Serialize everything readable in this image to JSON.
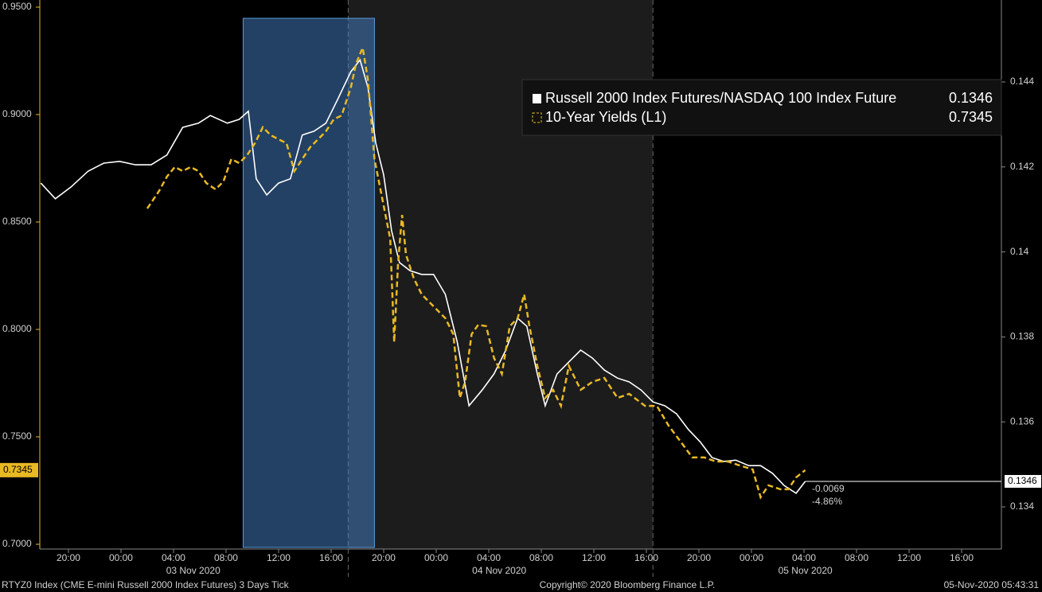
{
  "chart_data": {
    "type": "line",
    "xlim": [
      17.82,
      91.03
    ],
    "xticks": [
      {
        "value": 20,
        "label": "20:00"
      },
      {
        "value": 24,
        "label": "00:00"
      },
      {
        "value": 28,
        "label": "04:00"
      },
      {
        "value": 32,
        "label": "08:00"
      },
      {
        "value": 36,
        "label": "12:00"
      },
      {
        "value": 40,
        "label": "16:00"
      },
      {
        "value": 44,
        "label": "20:00"
      },
      {
        "value": 48,
        "label": "00:00"
      },
      {
        "value": 52,
        "label": "04:00"
      },
      {
        "value": 56,
        "label": "08:00"
      },
      {
        "value": 60,
        "label": "12:00"
      },
      {
        "value": 64,
        "label": "16:00"
      },
      {
        "value": 68,
        "label": "20:00"
      },
      {
        "value": 72,
        "label": "00:00"
      },
      {
        "value": 76,
        "label": "04:00"
      },
      {
        "value": 80,
        "label": "08:00"
      },
      {
        "value": 84,
        "label": "12:00"
      },
      {
        "value": 88,
        "label": "16:00"
      }
    ],
    "date_labels": [
      {
        "value": 29.5,
        "label": "03 Nov 2020"
      },
      {
        "value": 52.8,
        "label": "04 Nov 2020"
      },
      {
        "value": 76.1,
        "label": "05 Nov 2020"
      }
    ],
    "session_shade": [
      41.3,
      64.5
    ],
    "highlight": [
      33.3,
      43.3
    ],
    "ylim": [
      0.7,
      0.95
    ],
    "yticks": [
      {
        "value": 0.7,
        "label": "0.7000"
      },
      {
        "value": 0.75,
        "label": "0.7500"
      },
      {
        "value": 0.8,
        "label": "0.8000"
      },
      {
        "value": 0.85,
        "label": "0.8500"
      },
      {
        "value": 0.9,
        "label": "0.9000"
      },
      {
        "value": 0.95,
        "label": "0.9500"
      }
    ],
    "y2lim": [
      0.13312,
      0.14576
    ],
    "y2ticks": [
      0.134,
      0.136,
      0.138,
      0.14,
      0.142,
      0.144
    ],
    "series": [
      {
        "name": "Russell 2000 Index Futures/NASDAQ 100 Index Future",
        "color": "#ffffff",
        "axis": "y2",
        "line_style": "solid",
        "x": [
          17.9,
          19.0,
          20.2,
          21.5,
          22.7,
          23.9,
          25.1,
          26.3,
          27.5,
          28.7,
          29.9,
          30.8,
          32.1,
          33.0,
          33.7,
          34.3,
          35.1,
          36.0,
          36.9,
          37.8,
          38.7,
          39.6,
          40.5,
          41.5,
          42.2,
          42.8,
          43.4,
          44.0,
          44.6,
          45.2,
          46.0,
          46.9,
          47.8,
          48.7,
          49.6,
          50.5,
          51.5,
          52.4,
          53.3,
          54.2,
          54.9,
          55.7,
          56.3,
          57.2,
          58.1,
          59.0,
          59.9,
          60.8,
          61.8,
          62.7,
          63.6,
          64.5,
          65.4,
          66.3,
          67.2,
          68.1,
          69.0,
          69.9,
          70.8,
          71.8,
          72.7,
          73.6,
          74.5,
          75.4,
          76.1
        ],
        "values": [
          0.14162,
          0.14125,
          0.14153,
          0.1419,
          0.14209,
          0.14213,
          0.14205,
          0.14205,
          0.14228,
          0.14293,
          0.14303,
          0.14321,
          0.14303,
          0.14312,
          0.14331,
          0.14172,
          0.14134,
          0.14162,
          0.14172,
          0.14275,
          0.14284,
          0.14303,
          0.14359,
          0.14424,
          0.14452,
          0.14387,
          0.14256,
          0.14181,
          0.1405,
          0.13975,
          0.13956,
          0.13947,
          0.13947,
          0.139,
          0.13788,
          0.13638,
          0.13675,
          0.13713,
          0.13769,
          0.13844,
          0.13825,
          0.13713,
          0.13638,
          0.13713,
          0.13741,
          0.13769,
          0.1375,
          0.13722,
          0.13703,
          0.13694,
          0.13675,
          0.13647,
          0.13638,
          0.13619,
          0.13582,
          0.13553,
          0.13516,
          0.13507,
          0.1351,
          0.13497,
          0.13497,
          0.13479,
          0.1345,
          0.13432,
          0.1346
        ]
      },
      {
        "name": "10-Year Yields (L1)",
        "color": "#e8b923",
        "axis": "y",
        "line_style": "dashed",
        "x": [
          26.0,
          26.9,
          27.5,
          28.1,
          28.7,
          29.3,
          29.9,
          30.5,
          31.2,
          31.8,
          32.4,
          33.0,
          33.6,
          34.2,
          34.8,
          35.4,
          36.0,
          36.6,
          37.2,
          37.8,
          38.4,
          39.0,
          39.6,
          40.2,
          40.8,
          41.5,
          41.9,
          42.4,
          42.8,
          43.3,
          43.9,
          44.5,
          44.8,
          45.1,
          45.4,
          45.7,
          46.3,
          46.9,
          47.5,
          48.1,
          48.7,
          49.3,
          49.8,
          50.2,
          50.7,
          51.2,
          51.8,
          52.4,
          53.0,
          53.6,
          54.2,
          54.7,
          55.1,
          55.7,
          56.3,
          56.9,
          57.5,
          58.1,
          59.0,
          59.9,
          60.8,
          61.8,
          62.7,
          63.9,
          64.8,
          65.7,
          66.6,
          67.5,
          68.4,
          69.3,
          70.2,
          71.1,
          72.1,
          72.7,
          73.3,
          74.2,
          74.8,
          75.4,
          76.1
        ],
        "values": [
          0.8563,
          0.8644,
          0.8711,
          0.8756,
          0.8737,
          0.8756,
          0.8737,
          0.8681,
          0.8652,
          0.8689,
          0.8793,
          0.8774,
          0.8811,
          0.8867,
          0.8941,
          0.8904,
          0.8885,
          0.8867,
          0.8737,
          0.8793,
          0.8848,
          0.8885,
          0.8922,
          0.8978,
          0.8996,
          0.9126,
          0.9237,
          0.9311,
          0.9163,
          0.8793,
          0.8607,
          0.8422,
          0.7941,
          0.8311,
          0.8533,
          0.8348,
          0.8237,
          0.8163,
          0.8126,
          0.8089,
          0.8052,
          0.7978,
          0.7681,
          0.7756,
          0.7978,
          0.8022,
          0.8015,
          0.7867,
          0.7793,
          0.8015,
          0.8052,
          0.8163,
          0.8015,
          0.783,
          0.7681,
          0.7719,
          0.7644,
          0.783,
          0.7719,
          0.7756,
          0.7774,
          0.7681,
          0.77,
          0.7644,
          0.7644,
          0.7552,
          0.7478,
          0.7404,
          0.7404,
          0.7385,
          0.7385,
          0.7367,
          0.7348,
          0.7219,
          0.7274,
          0.7256,
          0.7256,
          0.7311,
          0.7345
        ]
      }
    ],
    "annotations": [
      "-0.0069",
      "-4.86%"
    ]
  },
  "footer": {
    "left": "RTYZ0 Index (CME E-mini Russell 2000 Index Futures) 3 Days  Tick",
    "center": "Copyright© 2020 Bloomberg Finance L.P.",
    "right": "05-Nov-2020 05:43:31"
  }
}
